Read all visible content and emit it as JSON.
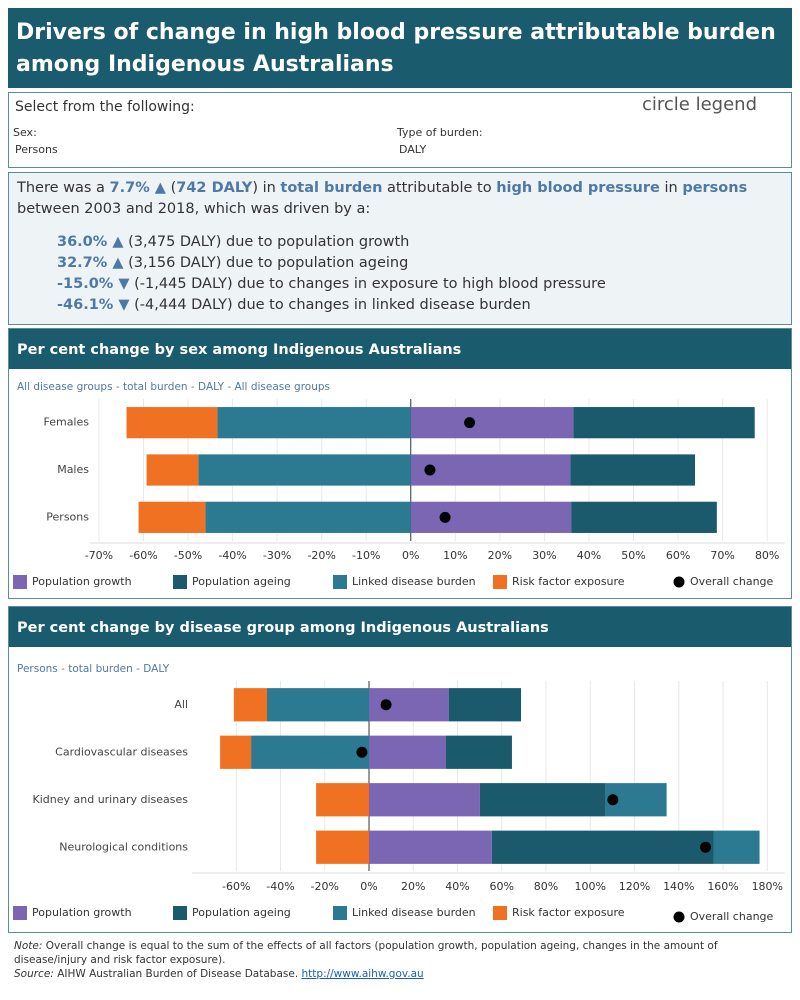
{
  "header": {
    "title": "Drivers of change in high blood pressure attributable burden among Indigenous Australians"
  },
  "filters": {
    "heading": "Select from the following:",
    "legend_label": "circle legend",
    "sex_label": "Sex:",
    "sex_value": "Persons",
    "burden_label": "Type of burden:",
    "burden_value": "DALY"
  },
  "summary": {
    "intro": [
      "There was a ",
      "7.7% ▲",
      " (",
      "742 DALY",
      ") in ",
      "total burden",
      " attributable to ",
      "high blood pressure",
      " in ",
      "persons",
      " between 2003 and 2018, which was driven by a:"
    ],
    "drivers": [
      {
        "change": "36.0% ▲",
        "text": "(3,475 DALY) due to population growth"
      },
      {
        "change": "32.7% ▲",
        "text": "(3,156 DALY) due to population ageing"
      },
      {
        "change": "-15.0% ▼",
        "text": "(-1,445 DALY) due to changes in exposure to high blood pressure"
      },
      {
        "change": "-46.1% ▼",
        "text": "(-4,444 DALY) due to changes in linked disease burden"
      }
    ]
  },
  "chart_data": [
    {
      "type": "bar",
      "orientation": "horizontal",
      "stacked": true,
      "title": "Per cent change by sex among Indigenous Australians",
      "subtitle": "All disease groups - total burden - DALY - All disease groups",
      "categories": [
        "Females",
        "Males",
        "Persons"
      ],
      "series": [
        {
          "name": "Population growth",
          "color": "#7b66b4",
          "values": [
            36.5,
            35.8,
            36.0
          ]
        },
        {
          "name": "Population ageing",
          "color": "#1b5a6d",
          "values": [
            40.7,
            28.0,
            32.7
          ]
        },
        {
          "name": "Linked disease burden",
          "color": "#2b7a92",
          "values": [
            -43.4,
            -47.7,
            -46.1
          ]
        },
        {
          "name": "Risk factor exposure",
          "color": "#f07122",
          "values": [
            -20.4,
            -11.6,
            -15.0
          ]
        }
      ],
      "overall": {
        "name": "Overall change",
        "color": "#000000",
        "values": [
          13.2,
          4.3,
          7.7
        ]
      },
      "xlim": [
        -72,
        84
      ],
      "xticks": [
        {
          "value": -70,
          "label": "-70%"
        },
        {
          "value": -60,
          "label": "-60%"
        },
        {
          "value": -50,
          "label": "-50%"
        },
        {
          "value": -40,
          "label": "-40%"
        },
        {
          "value": -30,
          "label": "-30%"
        },
        {
          "value": -20,
          "label": "-20%"
        },
        {
          "value": -10,
          "label": "-10%"
        },
        {
          "value": 0,
          "label": "0%"
        },
        {
          "value": 10,
          "label": "10%"
        },
        {
          "value": 20,
          "label": "20%"
        },
        {
          "value": 30,
          "label": "30%"
        },
        {
          "value": 40,
          "label": "40%"
        },
        {
          "value": 50,
          "label": "50%"
        },
        {
          "value": 60,
          "label": "60%"
        },
        {
          "value": 70,
          "label": "70%"
        },
        {
          "value": 80,
          "label": "80%"
        }
      ],
      "grid": true
    },
    {
      "type": "bar",
      "orientation": "horizontal",
      "stacked": true,
      "title": "Per cent change by disease group among Indigenous Australians",
      "subtitle": "Persons - total burden - DALY",
      "categories": [
        "All",
        "Cardiovascular diseases",
        "Kidney and urinary diseases",
        "Neurological conditions"
      ],
      "series": [
        {
          "name": "Population growth",
          "color": "#7b66b4",
          "values": [
            36.0,
            34.8,
            50.1,
            55.5
          ]
        },
        {
          "name": "Population ageing",
          "color": "#1b5a6d",
          "values": [
            32.7,
            29.8,
            56.9,
            100.2
          ]
        },
        {
          "name": "Linked disease burden",
          "color": "#2b7a92",
          "values": [
            -46.1,
            -53.3,
            27.5,
            20.8
          ]
        },
        {
          "name": "Risk factor exposure",
          "color": "#f07122",
          "values": [
            -15.0,
            -14.0,
            -23.9,
            -23.9
          ]
        }
      ],
      "overall": {
        "name": "Overall change",
        "color": "#000000",
        "values": [
          7.7,
          -3.2,
          110.2,
          152.1
        ]
      },
      "xlim": [
        -80,
        188
      ],
      "xticks": [
        {
          "value": -60,
          "label": "-60%"
        },
        {
          "value": -40,
          "label": "-40%"
        },
        {
          "value": -20,
          "label": "-20%"
        },
        {
          "value": 0,
          "label": "0%"
        },
        {
          "value": 20,
          "label": "20%"
        },
        {
          "value": 40,
          "label": "40%"
        },
        {
          "value": 60,
          "label": "60%"
        },
        {
          "value": 80,
          "label": "80%"
        },
        {
          "value": 100,
          "label": "100%"
        },
        {
          "value": 120,
          "label": "120%"
        },
        {
          "value": 140,
          "label": "140%"
        },
        {
          "value": 160,
          "label": "160%"
        },
        {
          "value": 180,
          "label": "180%"
        }
      ],
      "grid": true
    }
  ],
  "notes": {
    "note_label": "Note:",
    "note_text": "Overall change is equal to the sum of the effects of all factors (population growth, population ageing, changes in the amount of disease/injury and risk factor exposure).",
    "source_label": "Source:",
    "source_text": "AIHW Australian Burden of Disease Database.",
    "source_link": "http://www.aihw.gov.au"
  }
}
